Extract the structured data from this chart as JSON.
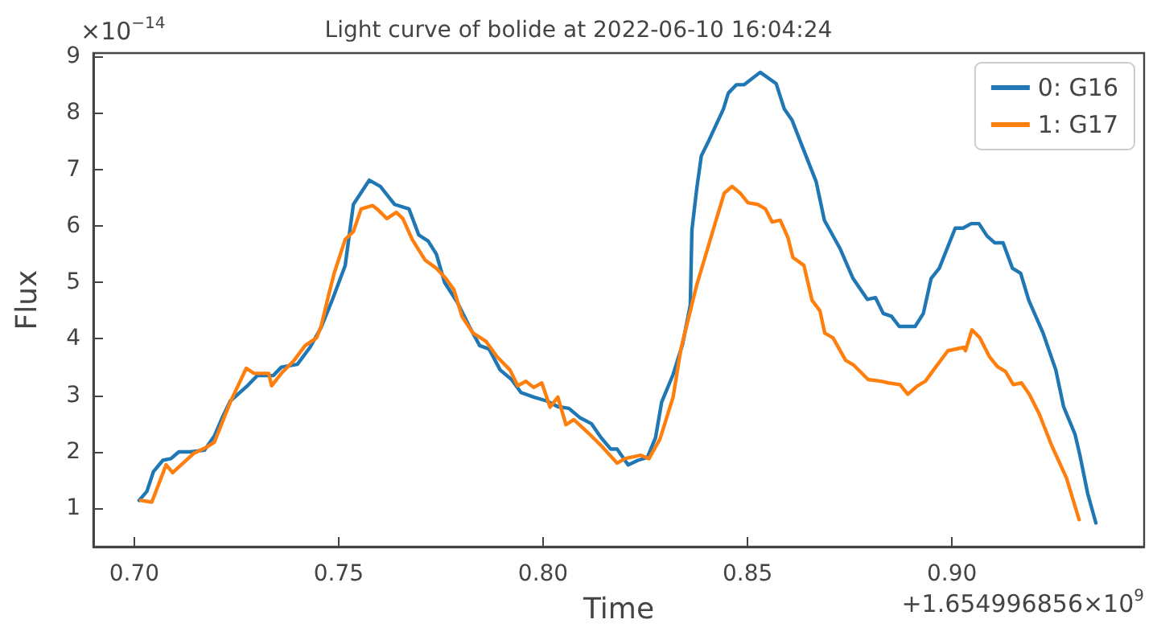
{
  "chart_data": {
    "type": "line",
    "title": "Light curve of bolide at 2022-06-10 16:04:24",
    "xlabel": "Time",
    "ylabel": "Flux",
    "annotations": [
      "×10$^{−14}$",
      "+1.654996856×10$^{9}$"
    ],
    "xlim": [
      0.69,
      0.947
    ],
    "ylim": [
      0.32,
      9.06
    ],
    "xticks": [
      {
        "value": 0.7,
        "label": "0.70"
      },
      {
        "value": 0.75,
        "label": "0.75"
      },
      {
        "value": 0.8,
        "label": "0.80"
      },
      {
        "value": 0.85,
        "label": "0.85"
      },
      {
        "value": 0.9,
        "label": "0.90"
      }
    ],
    "yticks": [
      1,
      2,
      3,
      4,
      5,
      6,
      7,
      8,
      9
    ],
    "grid": false,
    "legend": "top right",
    "line_style": "solid",
    "marker": "none",
    "series": [
      {
        "name": "0: G16",
        "color": "#1f77b4",
        "x": [
          0.7012,
          0.7031,
          0.7047,
          0.707,
          0.709,
          0.7109,
          0.7137,
          0.7172,
          0.7196,
          0.7215,
          0.7235,
          0.7274,
          0.7301,
          0.734,
          0.736,
          0.7399,
          0.743,
          0.7457,
          0.7485,
          0.7516,
          0.7536,
          0.7575,
          0.7602,
          0.7637,
          0.7672,
          0.7696,
          0.7719,
          0.7739,
          0.7759,
          0.779,
          0.7821,
          0.7845,
          0.7868,
          0.7895,
          0.7923,
          0.7946,
          0.7977,
          0.8009,
          0.8036,
          0.8063,
          0.8091,
          0.8118,
          0.8142,
          0.8165,
          0.8181,
          0.8208,
          0.8232,
          0.8255,
          0.8275,
          0.829,
          0.8318,
          0.8341,
          0.836,
          0.8364,
          0.8376,
          0.8387,
          0.8406,
          0.8441,
          0.8453,
          0.8473,
          0.8492,
          0.8531,
          0.857,
          0.859,
          0.8609,
          0.8637,
          0.8668,
          0.8688,
          0.8727,
          0.8758,
          0.8793,
          0.8813,
          0.8832,
          0.8852,
          0.8871,
          0.891,
          0.893,
          0.8949,
          0.8969,
          0.9008,
          0.9027,
          0.9047,
          0.9066,
          0.9086,
          0.9105,
          0.9125,
          0.9148,
          0.9168,
          0.9188,
          0.9223,
          0.9254,
          0.9273,
          0.9301,
          0.9313,
          0.9332,
          0.9352
        ],
        "values": [
          1.14,
          1.3,
          1.65,
          1.85,
          1.88,
          2.0,
          2.0,
          2.03,
          2.28,
          2.6,
          2.9,
          3.15,
          3.35,
          3.35,
          3.5,
          3.55,
          3.85,
          4.2,
          4.7,
          5.3,
          6.38,
          6.81,
          6.7,
          6.38,
          6.3,
          5.84,
          5.73,
          5.5,
          5.0,
          4.65,
          4.2,
          3.88,
          3.82,
          3.45,
          3.28,
          3.05,
          2.97,
          2.9,
          2.8,
          2.77,
          2.6,
          2.5,
          2.25,
          2.05,
          2.05,
          1.77,
          1.85,
          1.9,
          2.25,
          2.88,
          3.37,
          3.9,
          4.6,
          5.93,
          6.67,
          7.24,
          7.52,
          8.07,
          8.35,
          8.5,
          8.5,
          8.72,
          8.52,
          8.07,
          7.87,
          7.35,
          6.78,
          6.1,
          5.59,
          5.07,
          4.7,
          4.73,
          4.45,
          4.4,
          4.22,
          4.22,
          4.45,
          5.07,
          5.25,
          5.96,
          5.96,
          6.04,
          6.04,
          5.82,
          5.7,
          5.7,
          5.25,
          5.16,
          4.68,
          4.1,
          3.45,
          2.8,
          2.31,
          1.94,
          1.26,
          0.74
        ]
      },
      {
        "name": "1: G17",
        "color": "#ff7f0e",
        "x": [
          0.7016,
          0.7043,
          0.7078,
          0.7094,
          0.7145,
          0.7176,
          0.7196,
          0.7235,
          0.7274,
          0.7293,
          0.7329,
          0.7336,
          0.736,
          0.7391,
          0.7418,
          0.7446,
          0.7457,
          0.7477,
          0.7489,
          0.7516,
          0.7536,
          0.7555,
          0.7583,
          0.7594,
          0.7618,
          0.7641,
          0.7657,
          0.768,
          0.7712,
          0.7739,
          0.7762,
          0.7782,
          0.7802,
          0.7829,
          0.786,
          0.7888,
          0.7919,
          0.7938,
          0.7958,
          0.7977,
          0.7997,
          0.8017,
          0.8036,
          0.8056,
          0.8075,
          0.8114,
          0.8142,
          0.8181,
          0.82,
          0.8239,
          0.8259,
          0.8286,
          0.8318,
          0.8337,
          0.8376,
          0.8404,
          0.8423,
          0.8443,
          0.8462,
          0.8482,
          0.8501,
          0.8525,
          0.8544,
          0.856,
          0.858,
          0.8599,
          0.8611,
          0.8638,
          0.8658,
          0.8677,
          0.8689,
          0.8709,
          0.874,
          0.8759,
          0.8795,
          0.8826,
          0.8845,
          0.8873,
          0.8892,
          0.8916,
          0.8935,
          0.8955,
          0.899,
          0.9029,
          0.9033,
          0.9049,
          0.9068,
          0.9092,
          0.9111,
          0.9131,
          0.915,
          0.917,
          0.9189,
          0.9213,
          0.9244,
          0.928,
          0.9311
        ],
        "values": [
          1.14,
          1.11,
          1.77,
          1.63,
          1.97,
          2.08,
          2.17,
          2.88,
          3.48,
          3.39,
          3.39,
          3.17,
          3.39,
          3.62,
          3.88,
          4.02,
          4.22,
          4.82,
          5.16,
          5.76,
          5.9,
          6.3,
          6.36,
          6.3,
          6.13,
          6.24,
          6.13,
          5.76,
          5.39,
          5.25,
          5.07,
          4.87,
          4.39,
          4.1,
          3.96,
          3.68,
          3.45,
          3.17,
          3.25,
          3.14,
          3.22,
          2.79,
          2.97,
          2.48,
          2.57,
          2.31,
          2.11,
          1.8,
          1.88,
          1.94,
          1.88,
          2.23,
          2.97,
          3.82,
          4.96,
          5.64,
          6.1,
          6.58,
          6.7,
          6.58,
          6.41,
          6.38,
          6.3,
          6.07,
          6.1,
          5.79,
          5.44,
          5.3,
          4.68,
          4.5,
          4.1,
          4.02,
          3.62,
          3.54,
          3.28,
          3.25,
          3.22,
          3.19,
          3.02,
          3.17,
          3.25,
          3.45,
          3.79,
          3.85,
          3.79,
          4.16,
          4.02,
          3.68,
          3.51,
          3.42,
          3.19,
          3.22,
          3.02,
          2.68,
          2.11,
          1.54,
          0.8
        ]
      }
    ]
  }
}
